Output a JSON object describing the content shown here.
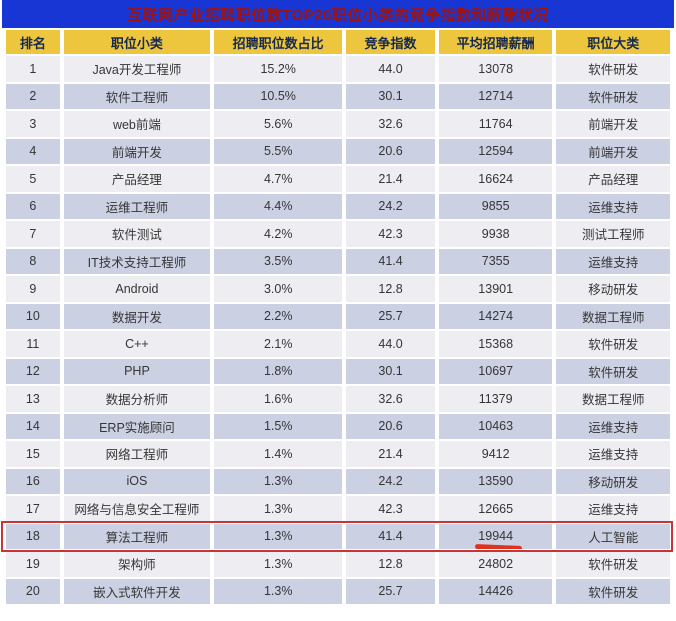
{
  "title": "互联网产业招聘职位数TOP20职位小类的竞争指数和薪酬状况",
  "table": {
    "columns": [
      "排名",
      "职位小类",
      "招聘职位数占比",
      "竞争指数",
      "平均招聘薪酬",
      "职位大类"
    ]
  },
  "highlight": {
    "rank": 18,
    "note": "red-box-around-row-and-red-underline-under-salary"
  },
  "colors": {
    "banner_bg": "#1736d3",
    "title_color": "#9e1310",
    "header_bg": "#eec63e",
    "header_text": "#16294e",
    "row_odd": "#ededf2",
    "row_even": "#cbd0e3",
    "annotation_red": "#c93434",
    "underline_red": "#e0321c"
  },
  "chart_data": {
    "type": "table",
    "title": "互联网产业招聘职位数TOP20职位小类的竞争指数和薪酬状况",
    "columns": [
      "排名",
      "职位小类",
      "招聘职位数占比",
      "竞争指数",
      "平均招聘薪酬",
      "职位大类"
    ],
    "rows": [
      {
        "rank": "1",
        "sub": "Java开发工程师",
        "share": "15.2%",
        "index": "44.0",
        "salary": "13078",
        "cat": "软件研发"
      },
      {
        "rank": "2",
        "sub": "软件工程师",
        "share": "10.5%",
        "index": "30.1",
        "salary": "12714",
        "cat": "软件研发"
      },
      {
        "rank": "3",
        "sub": "web前端",
        "share": "5.6%",
        "index": "32.6",
        "salary": "11764",
        "cat": "前端开发"
      },
      {
        "rank": "4",
        "sub": "前端开发",
        "share": "5.5%",
        "index": "20.6",
        "salary": "12594",
        "cat": "前端开发"
      },
      {
        "rank": "5",
        "sub": "产品经理",
        "share": "4.7%",
        "index": "21.4",
        "salary": "16624",
        "cat": "产品经理"
      },
      {
        "rank": "6",
        "sub": "运维工程师",
        "share": "4.4%",
        "index": "24.2",
        "salary": "9855",
        "cat": "运维支持"
      },
      {
        "rank": "7",
        "sub": "软件测试",
        "share": "4.2%",
        "index": "42.3",
        "salary": "9938",
        "cat": "测试工程师"
      },
      {
        "rank": "8",
        "sub": "IT技术支持工程师",
        "share": "3.5%",
        "index": "41.4",
        "salary": "7355",
        "cat": "运维支持"
      },
      {
        "rank": "9",
        "sub": "Android",
        "share": "3.0%",
        "index": "12.8",
        "salary": "13901",
        "cat": "移动研发"
      },
      {
        "rank": "10",
        "sub": "数据开发",
        "share": "2.2%",
        "index": "25.7",
        "salary": "14274",
        "cat": "数据工程师"
      },
      {
        "rank": "11",
        "sub": "C++",
        "share": "2.1%",
        "index": "44.0",
        "salary": "15368",
        "cat": "软件研发"
      },
      {
        "rank": "12",
        "sub": "PHP",
        "share": "1.8%",
        "index": "30.1",
        "salary": "10697",
        "cat": "软件研发"
      },
      {
        "rank": "13",
        "sub": "数据分析师",
        "share": "1.6%",
        "index": "32.6",
        "salary": "11379",
        "cat": "数据工程师"
      },
      {
        "rank": "14",
        "sub": "ERP实施顾问",
        "share": "1.5%",
        "index": "20.6",
        "salary": "10463",
        "cat": "运维支持"
      },
      {
        "rank": "15",
        "sub": "网络工程师",
        "share": "1.4%",
        "index": "21.4",
        "salary": "9412",
        "cat": "运维支持"
      },
      {
        "rank": "16",
        "sub": "iOS",
        "share": "1.3%",
        "index": "24.2",
        "salary": "13590",
        "cat": "移动研发"
      },
      {
        "rank": "17",
        "sub": "网络与信息安全工程师",
        "share": "1.3%",
        "index": "42.3",
        "salary": "12665",
        "cat": "运维支持"
      },
      {
        "rank": "18",
        "sub": "算法工程师",
        "share": "1.3%",
        "index": "41.4",
        "salary": "19944",
        "cat": "人工智能"
      },
      {
        "rank": "19",
        "sub": "架构师",
        "share": "1.3%",
        "index": "12.8",
        "salary": "24802",
        "cat": "软件研发"
      },
      {
        "rank": "20",
        "sub": "嵌入式软件开发",
        "share": "1.3%",
        "index": "25.7",
        "salary": "14426",
        "cat": "软件研发"
      }
    ]
  }
}
